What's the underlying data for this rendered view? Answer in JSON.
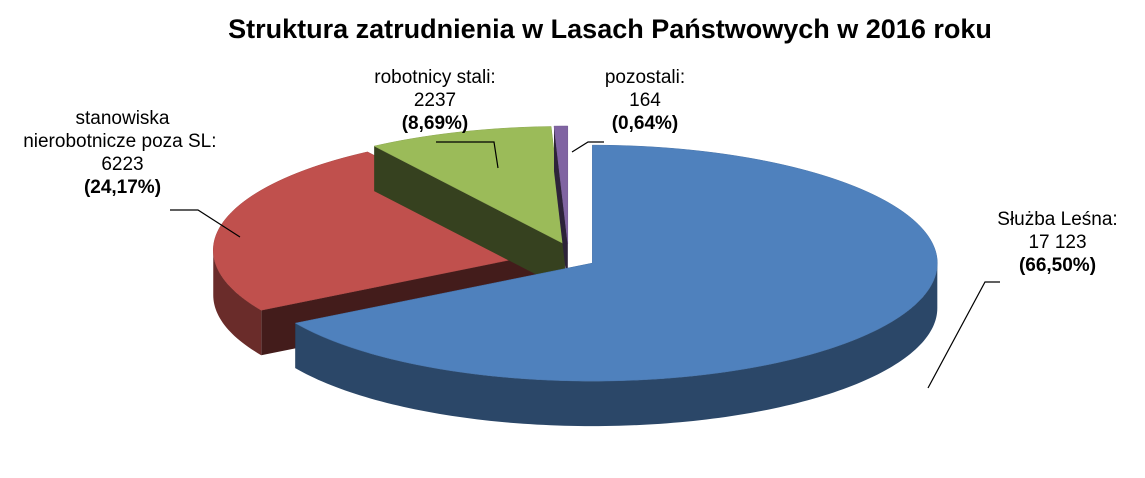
{
  "chart_data": {
    "type": "pie3d",
    "title": "Struktura zatrudnienia w Lasach Państwowych w 2016 roku",
    "categories": [
      "Służba Leśna:",
      "stanowiska nierobotnicze poza SL:",
      "robotnicy stali:",
      "pozostali:"
    ],
    "values": [
      17123,
      6223,
      2237,
      164
    ],
    "value_labels": [
      "17 123",
      "6223",
      "2237",
      "164"
    ],
    "percentages": [
      66.5,
      24.17,
      8.69,
      0.64
    ],
    "percentage_labels": [
      "(66,50%)",
      "(24,17%)",
      "(8,69%)",
      "(0,64%)"
    ],
    "colors": [
      "#4f81bd",
      "#c0504d",
      "#9bbb59",
      "#8064a2"
    ]
  }
}
